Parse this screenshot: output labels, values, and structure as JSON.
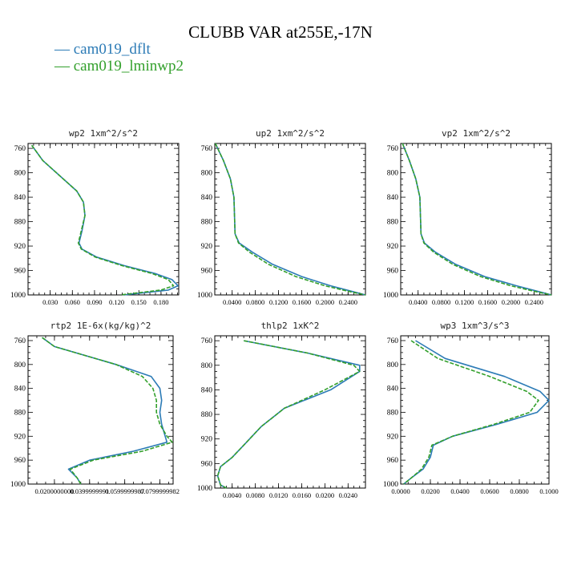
{
  "title": "CLUBB VAR at255E,-17N",
  "legend": [
    {
      "label": "cam019_dflt",
      "color": "#2c7bb6"
    },
    {
      "label": "cam019_lminwp2",
      "color": "#33a02c"
    }
  ],
  "legend_prefix": "—",
  "chart_data": [
    {
      "type": "line",
      "title": "wp2  1xm^2/s^2",
      "xlim": [
        0,
        0.204
      ],
      "xticks": [
        0.03,
        0.06,
        0.09,
        0.12,
        0.15,
        0.18
      ],
      "xtick_labels": [
        "0.030",
        "0.060",
        "0.090",
        "0.120",
        "0.150",
        "0.180"
      ],
      "ylim": [
        1000,
        752
      ],
      "yticks": [
        760,
        800,
        840,
        880,
        920,
        960,
        1000
      ],
      "series": [
        {
          "name": "cam019_dflt",
          "y": [
            755,
            780,
            830,
            848,
            870,
            895,
            915,
            925,
            938,
            952,
            965,
            975,
            985,
            992,
            1000
          ],
          "x": [
            0.005,
            0.02,
            0.066,
            0.075,
            0.077,
            0.073,
            0.069,
            0.073,
            0.093,
            0.13,
            0.172,
            0.195,
            0.203,
            0.19,
            0.13
          ]
        },
        {
          "name": "cam019_lminwp2",
          "y": [
            755,
            780,
            830,
            848,
            870,
            895,
            915,
            925,
            938,
            952,
            965,
            975,
            985,
            992,
            1000
          ],
          "x": [
            0.005,
            0.02,
            0.066,
            0.075,
            0.077,
            0.072,
            0.068,
            0.072,
            0.091,
            0.127,
            0.168,
            0.19,
            0.197,
            0.18,
            0.125
          ]
        }
      ]
    },
    {
      "type": "line",
      "title": "up2  1xm^2/s^2",
      "xlim": [
        0.01,
        0.27
      ],
      "xticks": [
        0.04,
        0.08,
        0.12,
        0.16,
        0.2,
        0.24
      ],
      "xtick_labels": [
        "0.0400",
        "0.0800",
        "0.1200",
        "0.1600",
        "0.2000",
        "0.2400"
      ],
      "ylim": [
        1000,
        752
      ],
      "yticks": [
        760,
        800,
        840,
        880,
        920,
        960,
        1000
      ],
      "series": [
        {
          "name": "cam019_dflt",
          "y": [
            752,
            780,
            810,
            840,
            870,
            900,
            915,
            930,
            950,
            970,
            985,
            995,
            1000
          ],
          "x": [
            0.011,
            0.025,
            0.037,
            0.043,
            0.044,
            0.045,
            0.052,
            0.075,
            0.11,
            0.16,
            0.21,
            0.25,
            0.27
          ]
        },
        {
          "name": "cam019_lminwp2",
          "y": [
            752,
            780,
            810,
            840,
            870,
            900,
            915,
            930,
            950,
            970,
            985,
            995,
            1000
          ],
          "x": [
            0.011,
            0.025,
            0.037,
            0.043,
            0.044,
            0.045,
            0.051,
            0.07,
            0.103,
            0.15,
            0.2,
            0.245,
            0.27
          ]
        }
      ]
    },
    {
      "type": "line",
      "title": "vp2  1xm^2/s^2",
      "xlim": [
        0.01,
        0.27
      ],
      "xticks": [
        0.04,
        0.08,
        0.12,
        0.16,
        0.2,
        0.24
      ],
      "xtick_labels": [
        "0.0400",
        "0.0800",
        "0.1200",
        "0.1600",
        "0.2000",
        "0.2400"
      ],
      "ylim": [
        1000,
        752
      ],
      "yticks": [
        760,
        800,
        840,
        880,
        920,
        960,
        1000
      ],
      "series": [
        {
          "name": "cam019_dflt",
          "y": [
            752,
            780,
            810,
            840,
            870,
            900,
            915,
            930,
            950,
            970,
            985,
            995,
            1000
          ],
          "x": [
            0.013,
            0.025,
            0.036,
            0.043,
            0.044,
            0.045,
            0.051,
            0.07,
            0.105,
            0.155,
            0.21,
            0.25,
            0.27
          ]
        },
        {
          "name": "cam019_lminwp2",
          "y": [
            752,
            780,
            810,
            840,
            870,
            900,
            915,
            930,
            950,
            970,
            985,
            995,
            1000
          ],
          "x": [
            0.013,
            0.025,
            0.036,
            0.043,
            0.044,
            0.045,
            0.05,
            0.067,
            0.1,
            0.148,
            0.2,
            0.245,
            0.27
          ]
        }
      ]
    },
    {
      "type": "line",
      "title": "rtp2  1E-6x(kg/kg)^2",
      "xlim": [
        0.005,
        0.0875
      ],
      "xticks": [
        0.02,
        0.04,
        0.06,
        0.08
      ],
      "xtick_labels": [
        "0.0200000000",
        "0.0399999991",
        "0.0599999987",
        "0.0799999982"
      ],
      "ylim": [
        1000,
        752
      ],
      "yticks": [
        760,
        800,
        840,
        880,
        920,
        960,
        1000
      ],
      "series": [
        {
          "name": "cam019_dflt",
          "y": [
            755,
            770,
            800,
            820,
            840,
            860,
            880,
            900,
            920,
            930,
            945,
            960,
            975,
            990,
            1000
          ],
          "x": [
            0.013,
            0.02,
            0.055,
            0.075,
            0.08,
            0.081,
            0.08,
            0.081,
            0.083,
            0.084,
            0.065,
            0.04,
            0.028,
            0.033,
            0.035
          ]
        },
        {
          "name": "cam019_lminwp2",
          "y": [
            755,
            770,
            800,
            820,
            840,
            860,
            880,
            900,
            920,
            930,
            945,
            960,
            975,
            990,
            1000
          ],
          "x": [
            0.013,
            0.02,
            0.055,
            0.07,
            0.076,
            0.078,
            0.078,
            0.08,
            0.084,
            0.087,
            0.07,
            0.042,
            0.029,
            0.033,
            0.035
          ]
        }
      ]
    },
    {
      "type": "line",
      "title": "thlp2  1xK^2",
      "xlim": [
        0.001,
        0.027
      ],
      "xticks": [
        0.004,
        0.008,
        0.012,
        0.016,
        0.02,
        0.024
      ],
      "xtick_labels": [
        "0.0040",
        "0.0080",
        "0.0120",
        "0.0160",
        "0.0200",
        "0.0240"
      ],
      "ylim": [
        1000,
        752
      ],
      "yticks": [
        760,
        800,
        840,
        880,
        920,
        960,
        1000
      ],
      "series": [
        {
          "name": "cam019_dflt",
          "y": [
            760,
            780,
            800,
            810,
            840,
            870,
            900,
            930,
            950,
            965,
            980,
            995,
            1000
          ],
          "x": [
            0.006,
            0.017,
            0.026,
            0.026,
            0.021,
            0.013,
            0.009,
            0.006,
            0.004,
            0.002,
            0.0015,
            0.002,
            0.003
          ]
        },
        {
          "name": "cam019_lminwp2",
          "y": [
            760,
            780,
            800,
            810,
            840,
            870,
            900,
            930,
            950,
            965,
            980,
            995,
            1000
          ],
          "x": [
            0.006,
            0.017,
            0.025,
            0.026,
            0.02,
            0.013,
            0.009,
            0.006,
            0.004,
            0.002,
            0.0015,
            0.002,
            0.003
          ]
        }
      ]
    },
    {
      "type": "line",
      "title": "wp3  1xm^3/s^3",
      "xlim": [
        0,
        0.1
      ],
      "xticks": [
        0,
        0.02,
        0.04,
        0.06,
        0.08,
        0.1
      ],
      "xtick_labels": [
        "0.0000",
        "0.0200",
        "0.0400",
        "0.0600",
        "0.0800",
        "0.1000"
      ],
      "ylim": [
        1000,
        752
      ],
      "yticks": [
        760,
        800,
        840,
        880,
        920,
        960,
        1000
      ],
      "series": [
        {
          "name": "cam019_dflt",
          "y": [
            760,
            790,
            820,
            845,
            860,
            880,
            900,
            920,
            935,
            955,
            975,
            990,
            1000
          ],
          "x": [
            0.01,
            0.03,
            0.07,
            0.094,
            0.1,
            0.092,
            0.065,
            0.035,
            0.022,
            0.02,
            0.015,
            0.007,
            0.002
          ]
        },
        {
          "name": "cam019_lminwp2",
          "y": [
            760,
            790,
            820,
            845,
            860,
            880,
            900,
            920,
            935,
            955,
            975,
            990,
            1000
          ],
          "x": [
            0.007,
            0.025,
            0.06,
            0.085,
            0.093,
            0.087,
            0.063,
            0.035,
            0.021,
            0.019,
            0.014,
            0.007,
            0.002
          ]
        }
      ]
    }
  ]
}
